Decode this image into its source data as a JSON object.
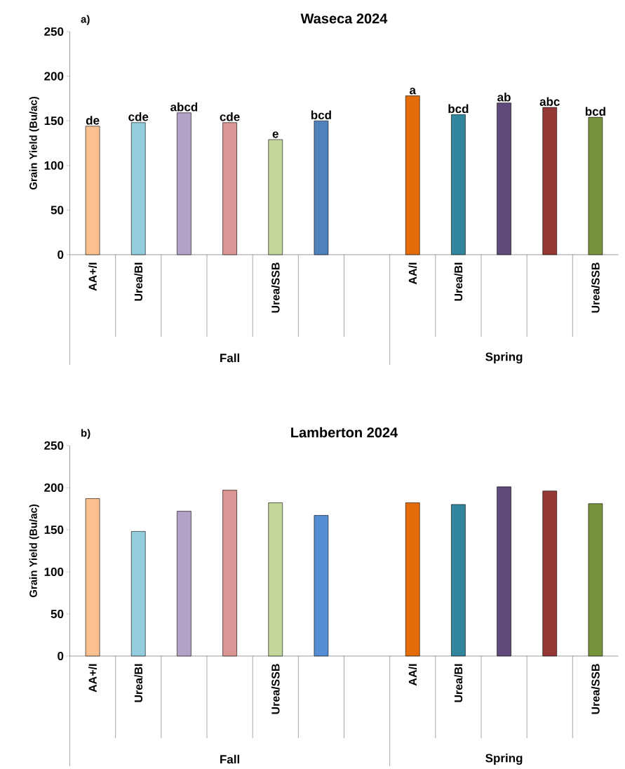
{
  "chart_data": [
    {
      "type": "bar",
      "title": "Waseca 2024",
      "ylabel": "Grain Yield (Bu/ac)",
      "categories": [
        "AA+/I",
        "Urea/BI",
        null,
        null,
        "Urea/SSB",
        null,
        null,
        "AA/I",
        "Urea/BI",
        null,
        null,
        "Urea/SSB"
      ],
      "values": [
        144,
        148,
        159,
        148,
        129,
        150,
        null,
        178,
        157,
        170,
        165,
        154
      ],
      "colors": [
        "#fac090",
        "#93cddd",
        "#b3a2c7",
        "#d99694",
        "#c3d69b",
        "#4f81bd",
        null,
        "#e46c0a",
        "#31859c",
        "#604a7b",
        "#953735",
        "#77933c"
      ],
      "value_labels": [
        "de",
        "cde",
        "abcd",
        "cde",
        "e",
        "bcd",
        null,
        "a",
        "bcd",
        "ab",
        "abc",
        "bcd"
      ],
      "ylim": [
        0,
        250
      ],
      "yticks": [
        0,
        50,
        100,
        150,
        200,
        250
      ],
      "annotations": [
        "a)",
        "Fall",
        "Spring"
      ]
    },
    {
      "type": "bar",
      "title": "Lamberton 2024",
      "ylabel": "Grain Yield (Bu/ac)",
      "categories": [
        "AA+/I",
        "Urea/BI",
        null,
        null,
        "Urea/SSB",
        null,
        null,
        "AA/I",
        "Urea/BI",
        null,
        null,
        "Urea/SSB"
      ],
      "values": [
        187,
        148,
        172,
        197,
        182,
        167,
        null,
        182,
        180,
        201,
        196,
        181
      ],
      "colors": [
        "#fac090",
        "#93cddd",
        "#b3a2c7",
        "#d99694",
        "#c3d69b",
        "#558ed5",
        null,
        "#e46c0a",
        "#31859c",
        "#604a7b",
        "#953735",
        "#77933c"
      ],
      "ylim": [
        0,
        250
      ],
      "yticks": [
        0,
        50,
        100,
        150,
        200,
        250
      ],
      "annotations": [
        "b)",
        "Fall",
        "Spring"
      ]
    }
  ]
}
